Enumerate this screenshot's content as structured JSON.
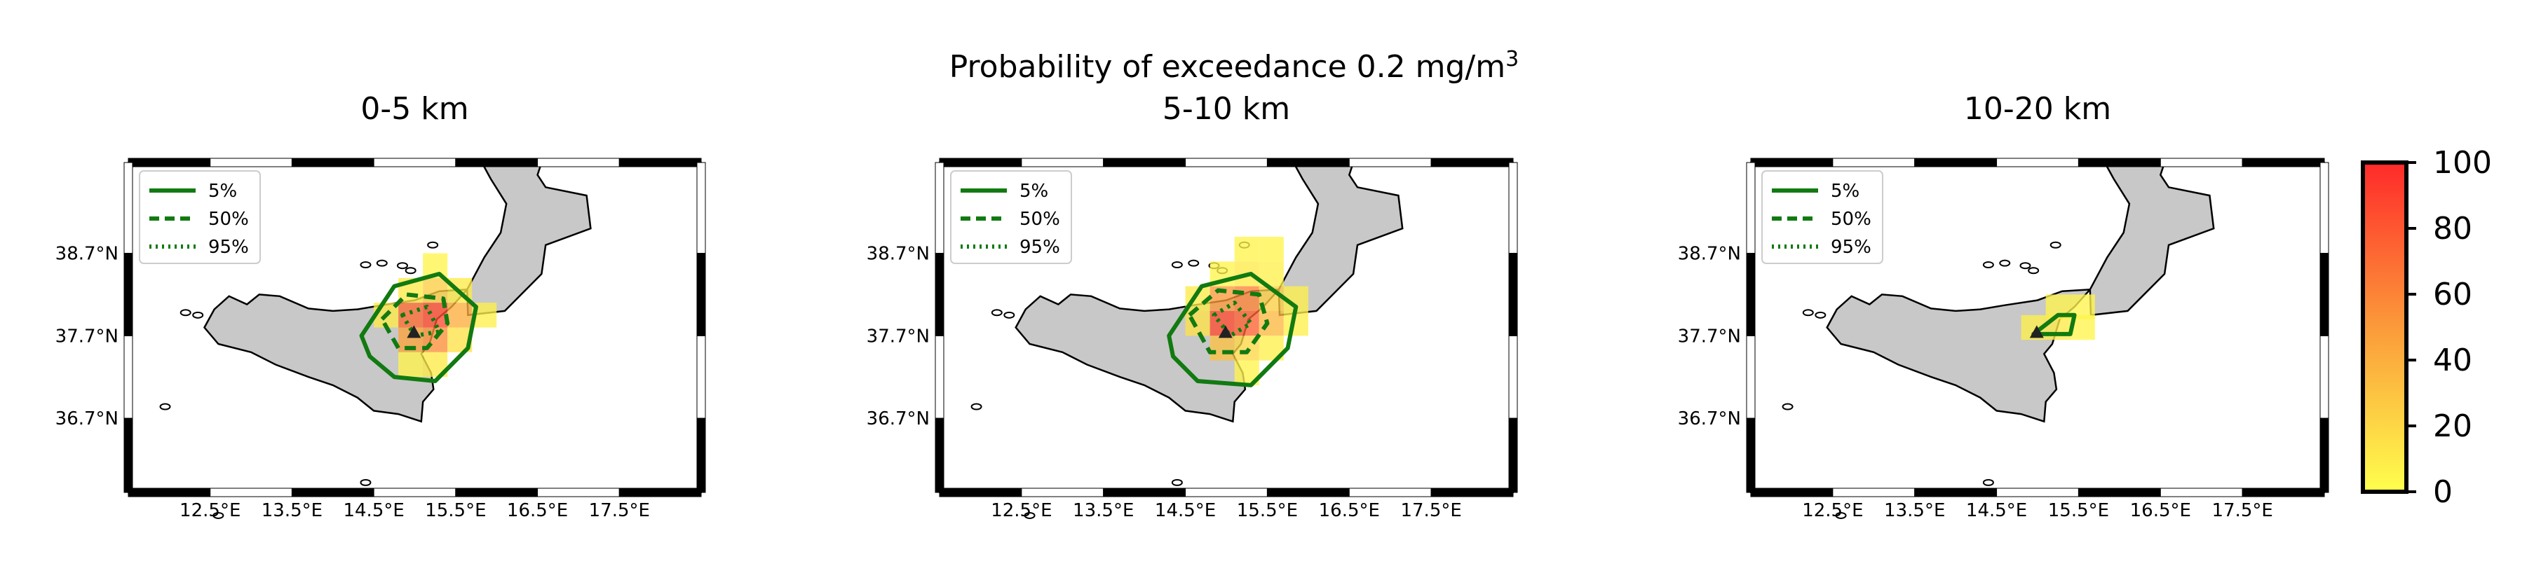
{
  "figure": {
    "suptitle_main": "Probability of exceedance 0.2 mg/m",
    "suptitle_sup": "3"
  },
  "legend": {
    "entries": [
      {
        "label": "5%",
        "style": "solid"
      },
      {
        "label": "50%",
        "style": "dashed"
      },
      {
        "label": "95%",
        "style": "dotted"
      }
    ]
  },
  "colors": {
    "contour": "#117a11",
    "land": "#c8c8c8",
    "coast": "#000000",
    "cmap_low": "#ffff4d",
    "cmap_high": "#ff2a2a"
  },
  "chart_data": [
    {
      "type": "heatmap",
      "title": "0-5 km",
      "xticks": [
        "12.5°E",
        "13.5°E",
        "14.5°E",
        "15.5°E",
        "16.5°E",
        "17.5°E"
      ],
      "yticks": [
        "38.7°N",
        "37.7°N",
        "36.7°N"
      ],
      "xlim": [
        11.5,
        18.5
      ],
      "ylim": [
        35.8,
        39.8
      ],
      "cells": [
        {
          "lon": 15.25,
          "lat": 38.55,
          "p": 5
        },
        {
          "lon": 14.95,
          "lat": 38.25,
          "p": 10
        },
        {
          "lon": 15.25,
          "lat": 38.25,
          "p": 25
        },
        {
          "lon": 15.55,
          "lat": 38.25,
          "p": 10
        },
        {
          "lon": 14.65,
          "lat": 37.95,
          "p": 10
        },
        {
          "lon": 14.95,
          "lat": 37.95,
          "p": 70
        },
        {
          "lon": 15.25,
          "lat": 37.95,
          "p": 85
        },
        {
          "lon": 15.55,
          "lat": 37.95,
          "p": 40
        },
        {
          "lon": 15.85,
          "lat": 37.95,
          "p": 8
        },
        {
          "lon": 14.95,
          "lat": 37.65,
          "p": 45
        },
        {
          "lon": 15.25,
          "lat": 37.65,
          "p": 55
        },
        {
          "lon": 15.55,
          "lat": 37.65,
          "p": 15
        },
        {
          "lon": 15.25,
          "lat": 37.35,
          "p": 10
        },
        {
          "lon": 14.95,
          "lat": 37.35,
          "p": 5
        }
      ],
      "contours": [
        {
          "level": "5%",
          "points": [
            [
              14.35,
              37.7
            ],
            [
              14.75,
              38.3
            ],
            [
              15.3,
              38.45
            ],
            [
              15.75,
              38.05
            ],
            [
              15.65,
              37.55
            ],
            [
              15.25,
              37.15
            ],
            [
              14.75,
              37.2
            ],
            [
              14.45,
              37.45
            ],
            [
              14.35,
              37.7
            ]
          ]
        },
        {
          "level": "50%",
          "points": [
            [
              14.6,
              37.9
            ],
            [
              14.9,
              38.2
            ],
            [
              15.35,
              38.15
            ],
            [
              15.4,
              37.85
            ],
            [
              15.15,
              37.55
            ],
            [
              14.8,
              37.55
            ],
            [
              14.6,
              37.9
            ]
          ]
        },
        {
          "level": "95%",
          "points": [
            [
              14.85,
              37.95
            ],
            [
              15.15,
              38.05
            ],
            [
              15.3,
              37.75
            ],
            [
              15.0,
              37.7
            ],
            [
              14.85,
              37.95
            ]
          ]
        }
      ],
      "vent": {
        "lon": 14.99,
        "lat": 37.75
      }
    },
    {
      "type": "heatmap",
      "title": "5-10 km",
      "xticks": [
        "12.5°E",
        "13.5°E",
        "14.5°E",
        "15.5°E",
        "16.5°E",
        "17.5°E"
      ],
      "yticks": [
        "38.7°N",
        "37.7°N",
        "36.7°N"
      ],
      "xlim": [
        11.5,
        18.5
      ],
      "ylim": [
        35.8,
        39.8
      ],
      "cells": [
        {
          "lon": 15.25,
          "lat": 38.75,
          "p": 5
        },
        {
          "lon": 15.55,
          "lat": 38.75,
          "p": 5
        },
        {
          "lon": 14.95,
          "lat": 38.45,
          "p": 5
        },
        {
          "lon": 15.25,
          "lat": 38.45,
          "p": 10
        },
        {
          "lon": 15.55,
          "lat": 38.45,
          "p": 8
        },
        {
          "lon": 14.65,
          "lat": 38.15,
          "p": 10
        },
        {
          "lon": 14.95,
          "lat": 38.15,
          "p": 50
        },
        {
          "lon": 15.25,
          "lat": 38.15,
          "p": 60
        },
        {
          "lon": 15.55,
          "lat": 38.15,
          "p": 25
        },
        {
          "lon": 15.85,
          "lat": 38.15,
          "p": 8
        },
        {
          "lon": 14.65,
          "lat": 37.85,
          "p": 15
        },
        {
          "lon": 14.95,
          "lat": 37.85,
          "p": 85
        },
        {
          "lon": 15.25,
          "lat": 37.85,
          "p": 75
        },
        {
          "lon": 15.55,
          "lat": 37.85,
          "p": 35
        },
        {
          "lon": 15.85,
          "lat": 37.85,
          "p": 8
        },
        {
          "lon": 14.95,
          "lat": 37.55,
          "p": 30
        },
        {
          "lon": 15.25,
          "lat": 37.55,
          "p": 20
        },
        {
          "lon": 15.55,
          "lat": 37.55,
          "p": 8
        },
        {
          "lon": 15.25,
          "lat": 37.25,
          "p": 5
        }
      ],
      "contours": [
        {
          "level": "5%",
          "points": [
            [
              14.3,
              37.7
            ],
            [
              14.7,
              38.3
            ],
            [
              15.3,
              38.45
            ],
            [
              15.85,
              38.05
            ],
            [
              15.75,
              37.55
            ],
            [
              15.3,
              37.1
            ],
            [
              14.65,
              37.15
            ],
            [
              14.35,
              37.45
            ],
            [
              14.3,
              37.7
            ]
          ]
        },
        {
          "level": "50%",
          "points": [
            [
              14.55,
              37.95
            ],
            [
              14.9,
              38.25
            ],
            [
              15.4,
              38.2
            ],
            [
              15.5,
              37.85
            ],
            [
              15.25,
              37.5
            ],
            [
              14.8,
              37.5
            ],
            [
              14.55,
              37.95
            ]
          ]
        },
        {
          "level": "95%",
          "points": [
            [
              14.85,
              37.95
            ],
            [
              15.1,
              38.1
            ],
            [
              15.3,
              37.85
            ],
            [
              15.05,
              37.7
            ],
            [
              14.85,
              37.95
            ]
          ]
        }
      ],
      "vent": {
        "lon": 14.99,
        "lat": 37.75
      }
    },
    {
      "type": "heatmap",
      "title": "10-20 km",
      "xticks": [
        "12.5°E",
        "13.5°E",
        "14.5°E",
        "15.5°E",
        "16.5°E",
        "17.5°E"
      ],
      "yticks": [
        "38.7°N",
        "37.7°N",
        "36.7°N"
      ],
      "xlim": [
        11.5,
        18.5
      ],
      "ylim": [
        35.8,
        39.8
      ],
      "cells": [
        {
          "lon": 15.25,
          "lat": 38.05,
          "p": 5
        },
        {
          "lon": 15.55,
          "lat": 38.05,
          "p": 5
        },
        {
          "lon": 14.95,
          "lat": 37.8,
          "p": 8
        },
        {
          "lon": 15.25,
          "lat": 37.8,
          "p": 10
        },
        {
          "lon": 15.55,
          "lat": 37.8,
          "p": 5
        }
      ],
      "contours": [
        {
          "level": "5%",
          "points": [
            [
              14.95,
              37.72
            ],
            [
              15.25,
              37.95
            ],
            [
              15.45,
              37.95
            ],
            [
              15.4,
              37.72
            ],
            [
              14.95,
              37.72
            ]
          ]
        }
      ],
      "vent": {
        "lon": 14.99,
        "lat": 37.75
      }
    }
  ],
  "colorbar": {
    "ticks": [
      "0",
      "20",
      "40",
      "60",
      "80",
      "100"
    ],
    "range": [
      0,
      100
    ]
  }
}
